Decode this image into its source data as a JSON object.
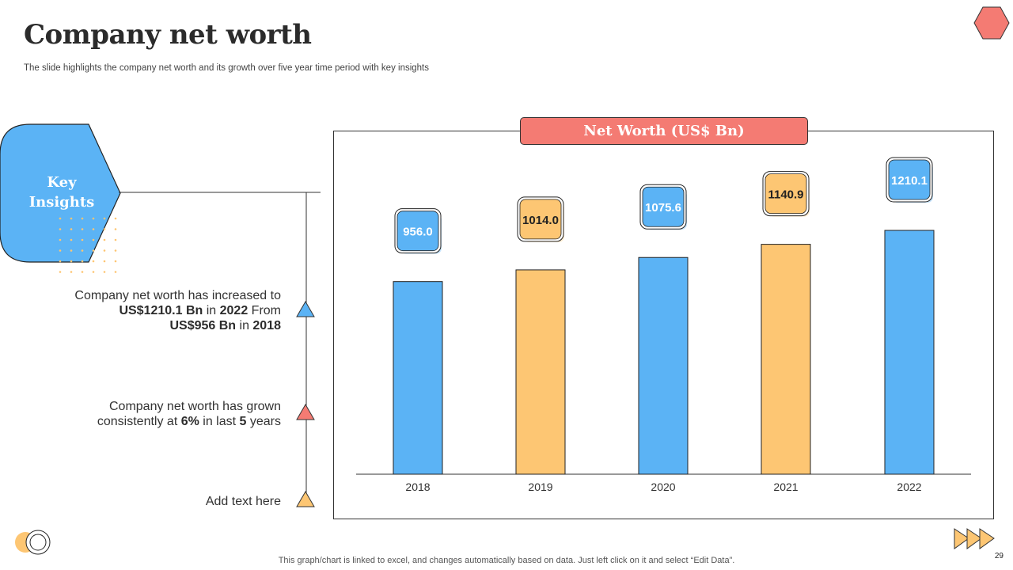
{
  "slide": {
    "title": "Company net worth",
    "subtitle": "The slide highlights the company net worth and its growth over five year time period with key insights",
    "key_label_line1": "Key",
    "key_label_line2": "Insights",
    "footnote": "This graph/chart is linked to excel,  and changes automatically based on data. Just left click on it and select “Edit Data”.",
    "page_number": "29"
  },
  "insights": [
    {
      "line1": "Company net worth  has increased to",
      "line2_bold_a": "US$1210.1 Bn",
      "line2_mid": " in ",
      "line2_bold_b": "2022",
      "line2_end": " From",
      "line3_bold_a": "US$956 Bn",
      "line3_mid": " in ",
      "line3_bold_b": "2018",
      "marker_color": "#5bb3f5"
    },
    {
      "line1": "Company net worth  has grown",
      "line2_pre": "consistently  at ",
      "line2_bold_a": "6%",
      "line2_mid": " in last ",
      "line2_bold_b": "5",
      "line2_end": " years",
      "marker_color": "#f47b73"
    },
    {
      "line1": "Add text here",
      "marker_color": "#fdc673"
    }
  ],
  "colors": {
    "blue": "#5bb3f5",
    "orange": "#fdc673",
    "coral": "#f47b73"
  },
  "chart_data": {
    "type": "bar",
    "title": "Net Worth (US$ Bn)",
    "categories": [
      "2018",
      "2019",
      "2020",
      "2021",
      "2022"
    ],
    "values": [
      956.0,
      1014.0,
      1075.6,
      1140.9,
      1210.1
    ],
    "value_labels": [
      "956.0",
      "1014.0",
      "1075.6",
      "1140.9",
      "1210.1"
    ],
    "bar_colors": [
      "#5bb3f5",
      "#fdc673",
      "#5bb3f5",
      "#fdc673",
      "#5bb3f5"
    ],
    "ylim": [
      0,
      1210.1
    ],
    "xlabel": "",
    "ylabel": "",
    "grid": false,
    "legend": "none"
  }
}
